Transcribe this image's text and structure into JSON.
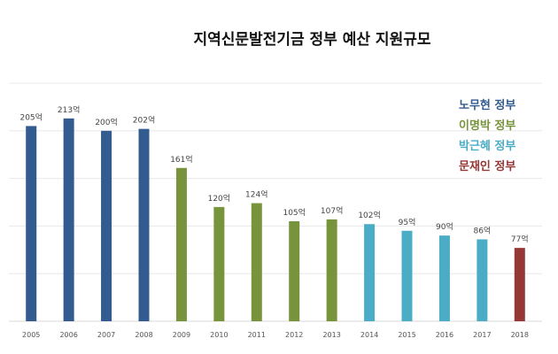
{
  "chart_data": {
    "type": "bar",
    "title": "지역신문발전기금 정부 예산 지원규모",
    "xlabel": "",
    "ylabel": "",
    "ylim": [
      0,
      250
    ],
    "grid": true,
    "unit_suffix": "억",
    "categories": [
      "2005",
      "2006",
      "2007",
      "2008",
      "2009",
      "2010",
      "2011",
      "2012",
      "2013",
      "2014",
      "2015",
      "2016",
      "2017",
      "2018"
    ],
    "values": [
      205,
      213,
      200,
      202,
      161,
      120,
      124,
      105,
      107,
      102,
      95,
      90,
      86,
      77
    ],
    "groups": [
      0,
      0,
      0,
      0,
      1,
      1,
      1,
      1,
      1,
      2,
      2,
      2,
      2,
      3
    ],
    "legend_position": "top-right",
    "legend": [
      {
        "label": "노무현 정부",
        "color": "#325b8f"
      },
      {
        "label": "이명박 정부",
        "color": "#77933c"
      },
      {
        "label": "박근혜 정부",
        "color": "#4bacc6"
      },
      {
        "label": "문재인 정부",
        "color": "#953735"
      }
    ]
  }
}
